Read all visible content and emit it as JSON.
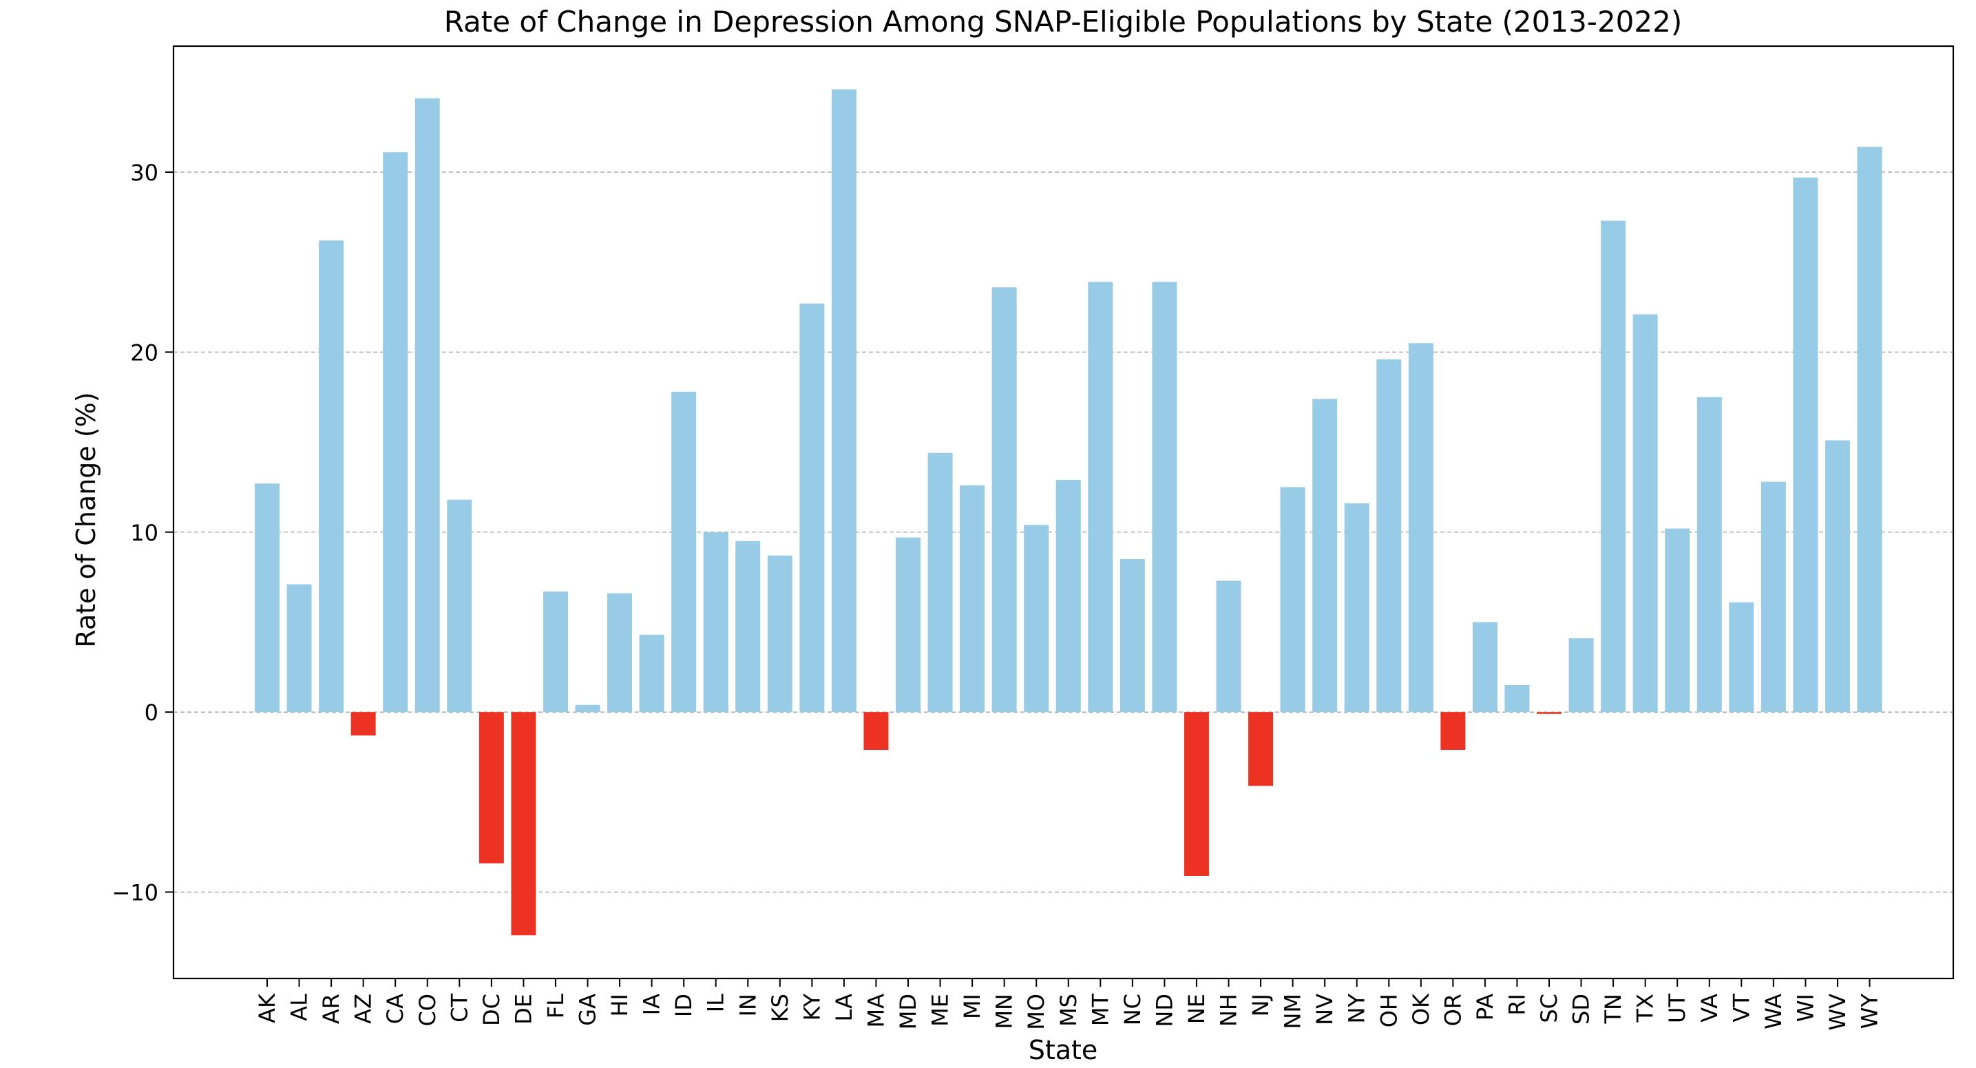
{
  "chart_data": {
    "type": "bar",
    "title": "Rate of Change in Depression Among SNAP-Eligible Populations by State (2013-2022)",
    "xlabel": "State",
    "ylabel": "Rate of Change (%)",
    "ylim": [
      -14.8,
      37.0
    ],
    "yticks": [
      -10,
      0,
      10,
      20,
      30
    ],
    "grid": "y-dashed",
    "colors": {
      "positive": "#97CBE6",
      "negative": "#EC3323",
      "grid": "#B0B0B0"
    },
    "categories": [
      "AK",
      "AL",
      "AR",
      "AZ",
      "CA",
      "CO",
      "CT",
      "DC",
      "DE",
      "FL",
      "GA",
      "HI",
      "IA",
      "ID",
      "IL",
      "IN",
      "KS",
      "KY",
      "LA",
      "MA",
      "MD",
      "ME",
      "MI",
      "MN",
      "MO",
      "MS",
      "MT",
      "NC",
      "ND",
      "NE",
      "NH",
      "NJ",
      "NM",
      "NV",
      "NY",
      "OH",
      "OK",
      "OR",
      "PA",
      "RI",
      "SC",
      "SD",
      "TN",
      "TX",
      "UT",
      "VA",
      "VT",
      "WA",
      "WI",
      "WV",
      "WY"
    ],
    "values": [
      12.7,
      7.1,
      26.2,
      -1.3,
      31.1,
      34.1,
      11.8,
      -8.4,
      -12.4,
      6.7,
      0.4,
      6.6,
      4.3,
      17.8,
      10.0,
      9.5,
      8.7,
      22.7,
      34.6,
      -2.1,
      9.7,
      14.4,
      12.6,
      23.6,
      10.4,
      12.9,
      23.9,
      8.5,
      23.9,
      -9.1,
      7.3,
      -4.1,
      12.5,
      17.4,
      11.6,
      19.6,
      20.5,
      -2.1,
      5.0,
      1.5,
      -0.1,
      4.1,
      27.3,
      22.1,
      10.2,
      17.5,
      6.1,
      12.8,
      29.7,
      15.1,
      31.4
    ]
  }
}
